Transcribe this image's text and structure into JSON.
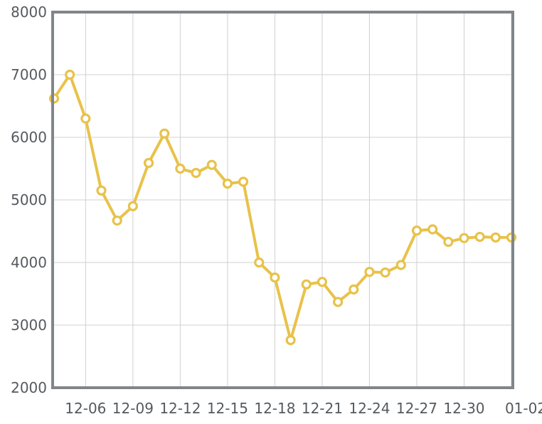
{
  "chart_data": {
    "type": "line",
    "title": "",
    "xlabel": "",
    "ylabel": "",
    "ylim": [
      2000,
      8000
    ],
    "yticks": [
      2000,
      3000,
      4000,
      5000,
      6000,
      7000,
      8000
    ],
    "ytick_labels": [
      "2000",
      "3000",
      "4000",
      "5000",
      "6000",
      "7000",
      "8000"
    ],
    "xlim": [
      "12-04",
      "01-02"
    ],
    "xtick_labels": [
      "12-06",
      "12-09",
      "12-12",
      "12-15",
      "12-18",
      "12-21",
      "12-24",
      "12-27",
      "12-30",
      "01-02"
    ],
    "grid": true,
    "legend": "none",
    "color": "#e8c24a",
    "series": [
      {
        "x": [
          "12-04",
          "12-05",
          "12-06",
          "12-07",
          "12-08",
          "12-09",
          "12-10",
          "12-11",
          "12-12",
          "12-13",
          "12-14",
          "12-15",
          "12-16",
          "12-17",
          "12-18",
          "12-19",
          "12-20",
          "12-21",
          "12-22",
          "12-23",
          "12-24",
          "12-25",
          "12-26",
          "12-27",
          "12-28",
          "12-29",
          "12-30",
          "12-31",
          "01-01",
          "01-02"
        ],
        "values": [
          6620,
          7000,
          6300,
          5150,
          4670,
          4900,
          5590,
          6060,
          5500,
          5430,
          5560,
          5260,
          5290,
          4000,
          3760,
          2760,
          3650,
          3690,
          3370,
          3570,
          3850,
          3840,
          3960,
          4510,
          4530,
          4330,
          4390,
          4410,
          4400,
          4400
        ]
      }
    ]
  }
}
